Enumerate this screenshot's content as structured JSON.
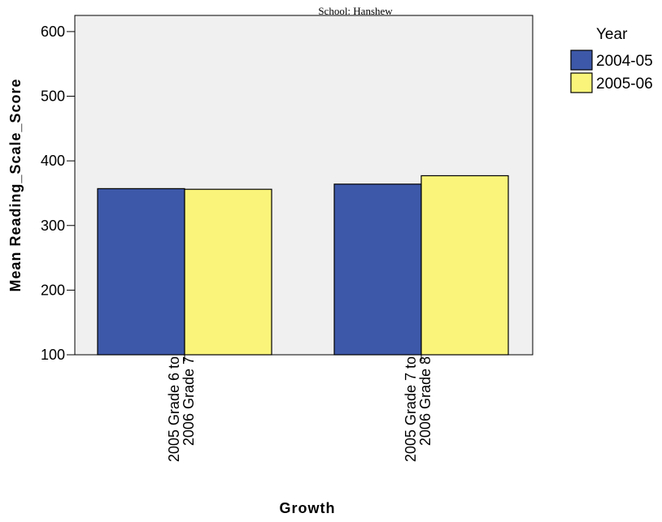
{
  "chart_data": {
    "type": "bar",
    "subtitle": "School: Hanshew",
    "xlabel": "Growth",
    "ylabel": "Mean Reading_Scale_Score",
    "ylim": [
      100,
      625
    ],
    "yticks": [
      100,
      200,
      300,
      400,
      500,
      600
    ],
    "categories": [
      [
        "2005 Grade 6 to",
        "2006 Grade 7"
      ],
      [
        "2005 Grade 7 to",
        "2006 Grade 8"
      ]
    ],
    "series": [
      {
        "name": "2004-05",
        "color": "#3d58a8",
        "values": [
          357,
          364
        ]
      },
      {
        "name": "2005-06",
        "color": "#faf57a",
        "values": [
          356,
          377
        ]
      }
    ],
    "legend": {
      "title": "Year",
      "placement": "top-right, outside plot"
    },
    "plot_background": "#f0f0f0",
    "grid": false
  }
}
